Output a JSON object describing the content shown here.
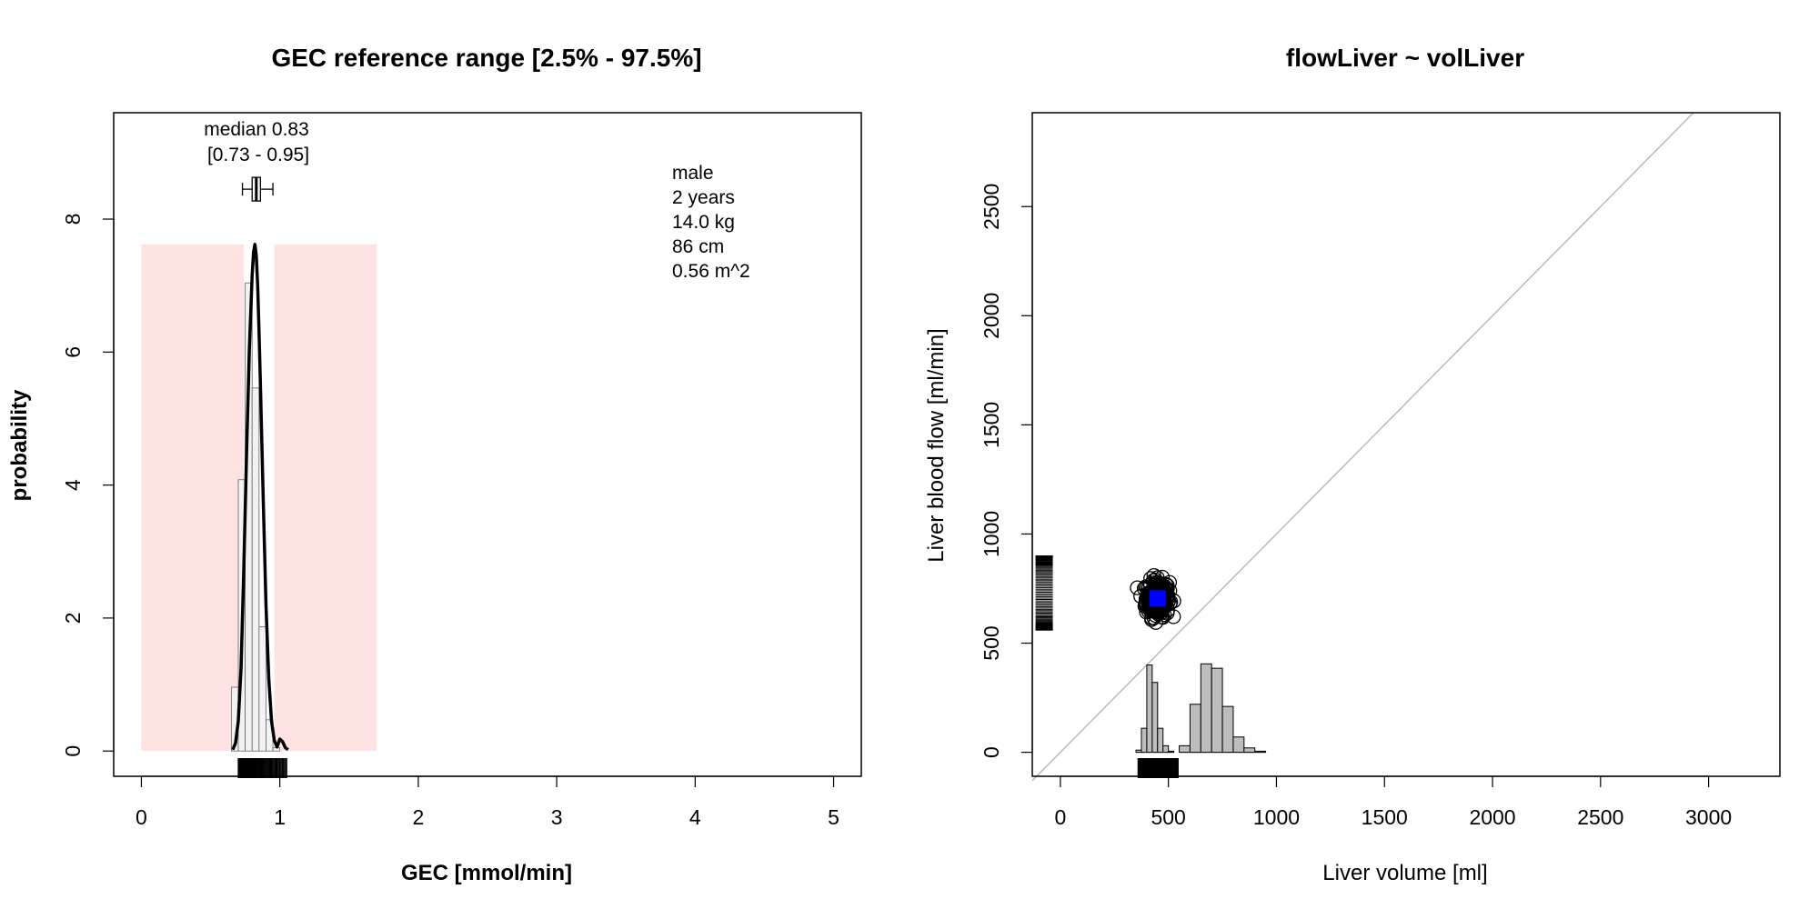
{
  "chart_data": [
    {
      "type": "histogram",
      "title": "GEC reference range [2.5% - 97.5%]",
      "xlabel": "GEC [mmol/min]",
      "ylabel": "probability",
      "xlim": [
        -0.2,
        5.2
      ],
      "ylim": [
        -0.38,
        9.6
      ],
      "x_ticks": [
        "0",
        "1",
        "2",
        "3",
        "4",
        "5"
      ],
      "y_ticks": [
        "0",
        "2",
        "4",
        "6",
        "8"
      ],
      "reference_ranges": [
        {
          "x0": 0.0,
          "x1": 0.74,
          "top": 7.62,
          "color": "#ffe3e3"
        },
        {
          "x0": 0.96,
          "x1": 1.7,
          "top": 7.62,
          "color": "#ffe3e3"
        }
      ],
      "histogram": {
        "bin_edges": [
          0.65,
          0.7,
          0.75,
          0.8,
          0.85,
          0.9,
          0.95,
          1.0
        ],
        "values": [
          0.96,
          4.08,
          7.04,
          5.46,
          1.87,
          0.47,
          0.05
        ]
      },
      "density_curve": {
        "x": [
          0.66,
          0.68,
          0.7,
          0.72,
          0.74,
          0.76,
          0.78,
          0.8,
          0.81,
          0.82,
          0.83,
          0.84,
          0.85,
          0.86,
          0.88,
          0.9,
          0.92,
          0.94,
          0.96,
          0.98,
          1.0,
          1.02,
          1.04,
          1.06
        ],
        "y": [
          0.02,
          0.12,
          0.45,
          1.25,
          2.75,
          4.5,
          6.05,
          7.15,
          7.5,
          7.62,
          7.45,
          7.0,
          6.3,
          5.5,
          3.8,
          2.2,
          1.1,
          0.45,
          0.16,
          0.06,
          0.18,
          0.14,
          0.05,
          0.02
        ]
      },
      "boxplot": {
        "y": 8.45,
        "min": 0.73,
        "q1": 0.8,
        "median": 0.83,
        "q3": 0.86,
        "max": 0.95
      },
      "rug": {
        "x0": 0.7,
        "x1": 1.05
      },
      "median_label": "median 0.83",
      "interval_label": "[0.73 - 0.95]",
      "info_lines": [
        "male",
        "2 years",
        "14.0 kg",
        "86 cm",
        "0.56 m^2"
      ]
    },
    {
      "type": "scatter",
      "title": "flowLiver ~ volLiver",
      "xlabel": "Liver volume [ml]",
      "ylabel": "Liver blood flow [ml/min]",
      "xlim": [
        -130,
        3330
      ],
      "ylim": [
        -110,
        2930
      ],
      "x_ticks": [
        "0",
        "500",
        "1000",
        "1500",
        "2000",
        "2500",
        "3000"
      ],
      "y_ticks": [
        "0",
        "500",
        "1000",
        "1500",
        "2000",
        "2500"
      ],
      "diagonal": {
        "x": [
          -130,
          2930
        ],
        "y": [
          -130,
          2930
        ]
      },
      "point_cloud": {
        "cx": 450,
        "cy": 705,
        "sx": 45,
        "sy": 70,
        "n": 260
      },
      "highlight_point": {
        "x": 450,
        "y": 705,
        "color": "#0000ff"
      },
      "hist_volume_a": {
        "bin_edges": [
          350,
          375,
          400,
          425,
          450,
          475,
          500,
          525
        ],
        "values": [
          10,
          110,
          400,
          320,
          110,
          30,
          5
        ]
      },
      "hist_volume_b": {
        "bin_edges": [
          550,
          600,
          650,
          700,
          750,
          800,
          850,
          900,
          950
        ],
        "values": [
          30,
          220,
          405,
          385,
          210,
          70,
          20,
          5
        ]
      },
      "y_rug": {
        "x0": -115,
        "x1": -35,
        "y0": 560,
        "y1": 900
      },
      "x_rug": {
        "x0": 360,
        "x1": 545
      }
    }
  ]
}
